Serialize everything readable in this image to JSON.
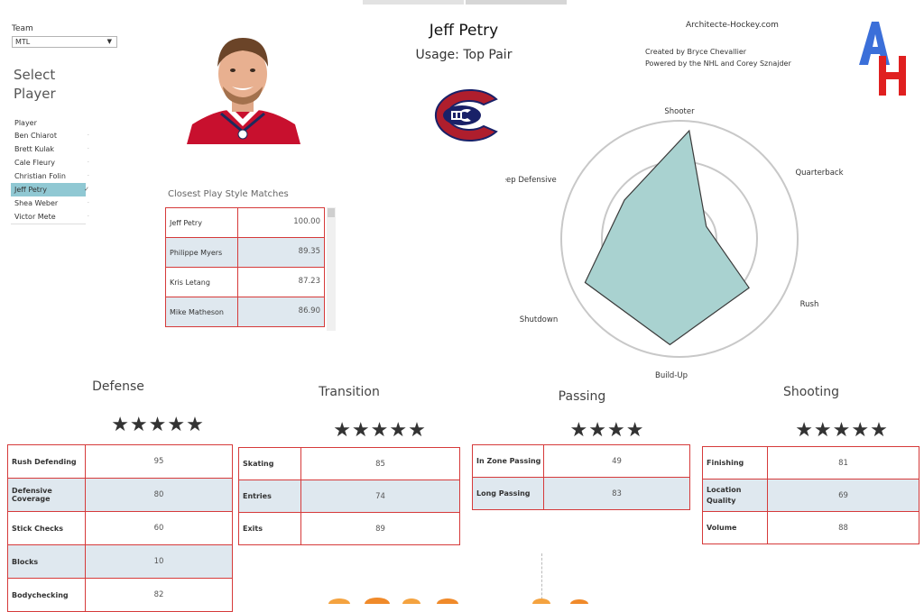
{
  "filters": {
    "team_label": "Team",
    "team_value": "MTL",
    "select_title_line1": "Select",
    "select_title_line2": "Player",
    "player_header": "Player",
    "players": [
      "Ben Chiarot",
      "Brett Kulak",
      "Cale Fleury",
      "Christian Folin",
      "Jeff Petry",
      "Shea Weber",
      "Victor Mete"
    ],
    "selected_player": "Jeff Petry"
  },
  "header": {
    "player_name": "Jeff Petry",
    "usage": "Usage: Top Pair",
    "site": "Architecte-Hockey.com",
    "credit_line1": "Created by Bryce Chevallier",
    "credit_line2": "Powered by the NHL and Corey Sznajder"
  },
  "matches": {
    "title": "Closest Play Style Matches",
    "rows": [
      {
        "name": "Jeff Petry",
        "value": "100.00"
      },
      {
        "name": "Philippe Myers",
        "value": "89.35"
      },
      {
        "name": "Kris Letang",
        "value": "87.23"
      },
      {
        "name": "Mike Matheson",
        "value": "86.90"
      }
    ]
  },
  "radar": {
    "axes": [
      "Shooter",
      "Quarterback",
      "Rush",
      "Build-Up",
      "Shutdown",
      "Deep Defensive"
    ],
    "values": [
      0.92,
      0.25,
      0.72,
      0.9,
      0.88,
      0.57
    ],
    "fill": "#a9d2d0",
    "stroke": "#3a3a3a"
  },
  "categories": {
    "defense": {
      "title": "Defense",
      "stars": "★★★★★",
      "rows": [
        {
          "label": "Rush Defending",
          "value": "95"
        },
        {
          "label": "Defensive Coverage",
          "value": "80"
        },
        {
          "label": "Stick Checks",
          "value": "60"
        },
        {
          "label": "Blocks",
          "value": "10"
        },
        {
          "label": "Bodychecking",
          "value": "82"
        }
      ]
    },
    "transition": {
      "title": "Transition",
      "stars": "★★★★★",
      "rows": [
        {
          "label": "Skating",
          "value": "85"
        },
        {
          "label": "Entries",
          "value": "74"
        },
        {
          "label": "Exits",
          "value": "89"
        }
      ]
    },
    "passing": {
      "title": "Passing",
      "stars": "★★★★",
      "rows": [
        {
          "label": "In Zone Passing",
          "value": "49"
        },
        {
          "label": "Long Passing",
          "value": "83"
        }
      ]
    },
    "shooting": {
      "title": "Shooting",
      "stars": "★★★★★",
      "rows": [
        {
          "label": "Finishing",
          "value": "81"
        },
        {
          "label": "Location Quality",
          "value": "69"
        },
        {
          "label": "Volume",
          "value": "88"
        }
      ]
    }
  },
  "colors": {
    "accent_red": "#d63a3a",
    "row_shade": "#dfe8ef",
    "selected": "#90c8d3",
    "canadiens_red": "#af1e2d",
    "canadiens_blue": "#192168"
  }
}
